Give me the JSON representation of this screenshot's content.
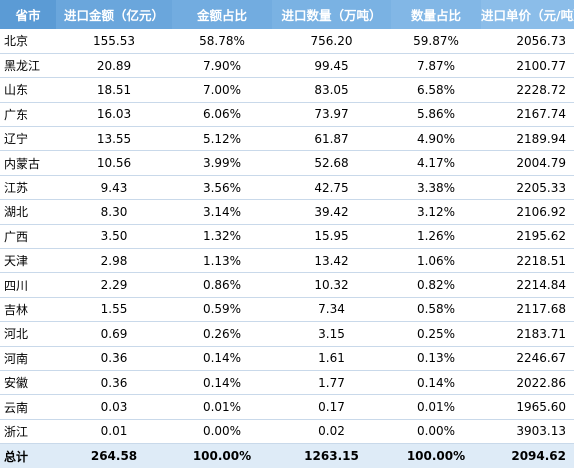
{
  "table": {
    "headers": [
      "省市",
      "进口金额（亿元）",
      "金额占比",
      "进口数量（万吨）",
      "数量占比",
      "进口单价（元/吨）"
    ],
    "rows": [
      [
        "北京",
        "155.53",
        "58.78%",
        "756.20",
        "59.87%",
        "2056.73"
      ],
      [
        "黑龙江",
        "20.89",
        "7.90%",
        "99.45",
        "7.87%",
        "2100.77"
      ],
      [
        "山东",
        "18.51",
        "7.00%",
        "83.05",
        "6.58%",
        "2228.72"
      ],
      [
        "广东",
        "16.03",
        "6.06%",
        "73.97",
        "5.86%",
        "2167.74"
      ],
      [
        "辽宁",
        "13.55",
        "5.12%",
        "61.87",
        "4.90%",
        "2189.94"
      ],
      [
        "内蒙古",
        "10.56",
        "3.99%",
        "52.68",
        "4.17%",
        "2004.79"
      ],
      [
        "江苏",
        "9.43",
        "3.56%",
        "42.75",
        "3.38%",
        "2205.33"
      ],
      [
        "湖北",
        "8.30",
        "3.14%",
        "39.42",
        "3.12%",
        "2106.92"
      ],
      [
        "广西",
        "3.50",
        "1.32%",
        "15.95",
        "1.26%",
        "2195.62"
      ],
      [
        "天津",
        "2.98",
        "1.13%",
        "13.42",
        "1.06%",
        "2218.51"
      ],
      [
        "四川",
        "2.29",
        "0.86%",
        "10.32",
        "0.82%",
        "2214.84"
      ],
      [
        "吉林",
        "1.55",
        "0.59%",
        "7.34",
        "0.58%",
        "2117.68"
      ],
      [
        "河北",
        "0.69",
        "0.26%",
        "3.15",
        "0.25%",
        "2183.71"
      ],
      [
        "河南",
        "0.36",
        "0.14%",
        "1.61",
        "0.13%",
        "2246.67"
      ],
      [
        "安徽",
        "0.36",
        "0.14%",
        "1.77",
        "0.14%",
        "2022.86"
      ],
      [
        "云南",
        "0.03",
        "0.01%",
        "0.17",
        "0.01%",
        "1965.60"
      ],
      [
        "浙江",
        "0.01",
        "0.00%",
        "0.02",
        "0.00%",
        "3903.13"
      ]
    ],
    "total": [
      "总计",
      "264.58",
      "100.00%",
      "1263.15",
      "100.00%",
      "2094.62"
    ]
  },
  "colors": {
    "header_gradient_start": "#5b9bd5",
    "header_gradient_end": "#8bbde9",
    "header_text": "#ffffff",
    "total_row_background": "#deebf7",
    "row_divider": "#c9d9ea"
  }
}
